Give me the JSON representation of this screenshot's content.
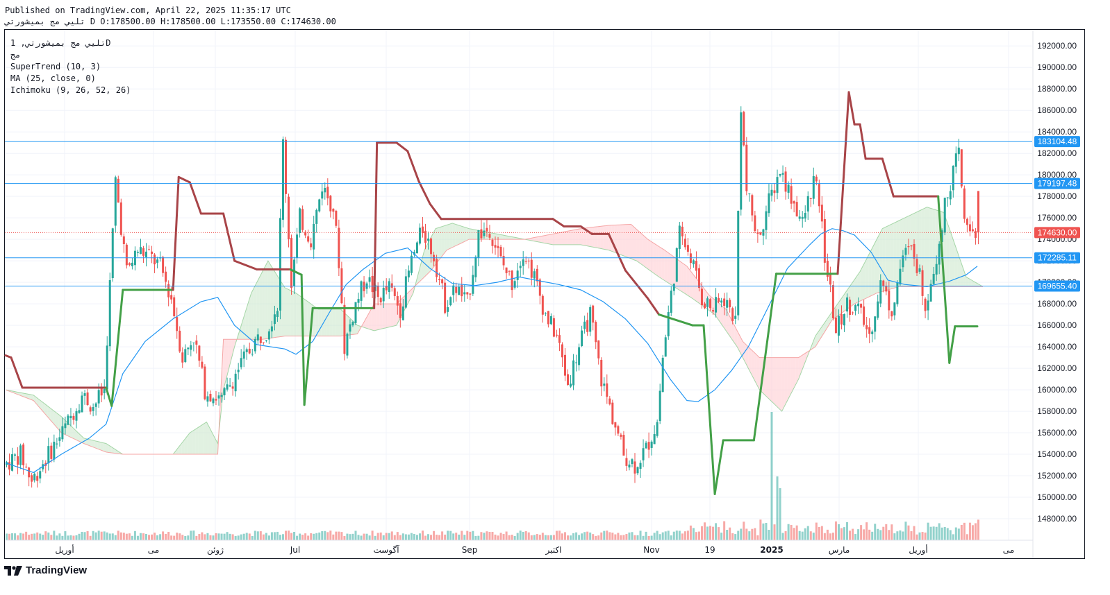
{
  "header": {
    "published": "Published on TradingView.com, April 22, 2025 11:35:17 UTC",
    "symbol_line": "تليي مج بميشورتي D O:178500.00 H:178500.00 L:173550.00 C:174630.00"
  },
  "legend": {
    "symbol": "تليي مج بميشورتي, 1D",
    "exchange": "مج",
    "indicators": [
      "SuperTrend (10, 3)",
      "MA (25, close, 0)",
      "Ichimoku (9, 26, 52, 26)"
    ]
  },
  "brand": {
    "name": "TradingView"
  },
  "colors": {
    "up": "#26a69a",
    "down": "#ef5350",
    "supertrend_up": "#43a047",
    "supertrend_down": "#a84448",
    "ma": "#2196f3",
    "hline": "#2196f3",
    "last_price": "#ef5350",
    "cloud_bull": "#c8e6c9",
    "cloud_bear": "#ffcdd2"
  },
  "chart_data": {
    "type": "candlestick",
    "ylim": [
      146000,
      193500
    ],
    "y_ticks": [
      "192000.00",
      "190000.00",
      "188000.00",
      "186000.00",
      "184000.00",
      "182000.00",
      "180000.00",
      "178000.00",
      "176000.00",
      "174000.00",
      "172000.00",
      "170000.00",
      "168000.00",
      "166000.00",
      "164000.00",
      "162000.00",
      "160000.00",
      "158000.00",
      "156000.00",
      "154000.00",
      "152000.00",
      "150000.00",
      "148000.00"
    ],
    "x_ticks": [
      "أوريل",
      "مى",
      "ژوئن",
      "Jul",
      "آگوست",
      "Sep",
      "اكتبر",
      "Nov",
      "19",
      "2025",
      "مارس",
      "أوريل",
      "مى"
    ],
    "horizontal_lines": [
      {
        "value": 183104.48,
        "label": "183104.48"
      },
      {
        "value": 179197.48,
        "label": "179197.48"
      },
      {
        "value": 172285.11,
        "label": "172285.11"
      },
      {
        "value": 169655.4,
        "label": "169655.40"
      }
    ],
    "last_price": {
      "value": 174630.0,
      "label": "174630.00"
    },
    "ohlc": {
      "open": 178500.0,
      "high": 178500.0,
      "low": 173550.0,
      "close": 174630.0
    },
    "keypoints": [
      [
        0,
        153000
      ],
      [
        6,
        154000
      ],
      [
        10,
        151500
      ],
      [
        16,
        154000
      ],
      [
        22,
        156500
      ],
      [
        28,
        159500
      ],
      [
        32,
        158500
      ],
      [
        36,
        160000
      ],
      [
        40,
        179500
      ],
      [
        44,
        171000
      ],
      [
        48,
        173000
      ],
      [
        52,
        172500
      ],
      [
        56,
        171500
      ],
      [
        60,
        168500
      ],
      [
        64,
        163000
      ],
      [
        68,
        165000
      ],
      [
        72,
        160000
      ],
      [
        78,
        159000
      ],
      [
        84,
        162000
      ],
      [
        90,
        164500
      ],
      [
        94,
        165500
      ],
      [
        98,
        168000
      ],
      [
        100,
        183000
      ],
      [
        103,
        170000
      ],
      [
        106,
        176000
      ],
      [
        110,
        174000
      ],
      [
        114,
        179000
      ],
      [
        118,
        177000
      ],
      [
        120,
        172000
      ],
      [
        122,
        164000
      ],
      [
        126,
        168000
      ],
      [
        130,
        170500
      ],
      [
        134,
        168500
      ],
      [
        138,
        169500
      ],
      [
        142,
        167500
      ],
      [
        146,
        172000
      ],
      [
        150,
        175000
      ],
      [
        154,
        172500
      ],
      [
        158,
        168000
      ],
      [
        162,
        169500
      ],
      [
        166,
        168000
      ],
      [
        170,
        174500
      ],
      [
        174,
        175000
      ],
      [
        178,
        172000
      ],
      [
        182,
        170000
      ],
      [
        186,
        173000
      ],
      [
        190,
        170500
      ],
      [
        194,
        167000
      ],
      [
        198,
        165000
      ],
      [
        202,
        160500
      ],
      [
        206,
        164000
      ],
      [
        210,
        167000
      ],
      [
        214,
        161000
      ],
      [
        218,
        157500
      ],
      [
        222,
        154000
      ],
      [
        226,
        153000
      ],
      [
        230,
        154500
      ],
      [
        234,
        157000
      ],
      [
        236,
        163000
      ],
      [
        238,
        167000
      ],
      [
        242,
        174500
      ],
      [
        246,
        172500
      ],
      [
        250,
        168500
      ],
      [
        254,
        167500
      ],
      [
        258,
        168500
      ],
      [
        262,
        166500
      ],
      [
        264,
        186500
      ],
      [
        266,
        178500
      ],
      [
        270,
        174000
      ],
      [
        274,
        177500
      ],
      [
        278,
        180500
      ],
      [
        282,
        178000
      ],
      [
        286,
        175500
      ],
      [
        290,
        179500
      ],
      [
        292,
        177500
      ],
      [
        294,
        172500
      ],
      [
        298,
        165500
      ],
      [
        302,
        168000
      ],
      [
        306,
        167500
      ],
      [
        310,
        165000
      ],
      [
        314,
        170000
      ],
      [
        318,
        167500
      ],
      [
        322,
        172500
      ],
      [
        326,
        173000
      ],
      [
        330,
        168000
      ],
      [
        334,
        172500
      ],
      [
        338,
        178500
      ],
      [
        342,
        182000
      ],
      [
        344,
        175500
      ],
      [
        348,
        174800
      ]
    ],
    "supertrend": [
      [
        0,
        163200
      ],
      [
        2,
        163000
      ],
      [
        6,
        160200
      ],
      [
        36,
        160200
      ],
      [
        38,
        158500
      ],
      [
        42,
        169300
      ],
      [
        60,
        169300
      ],
      [
        62,
        179800
      ],
      [
        66,
        179300
      ],
      [
        70,
        176400
      ],
      [
        78,
        176400
      ],
      [
        82,
        172000
      ],
      [
        90,
        171200
      ],
      [
        102,
        171200
      ],
      [
        106,
        170700
      ],
      [
        107,
        158600
      ],
      [
        110,
        167600
      ],
      [
        132,
        167600
      ],
      [
        133,
        183000
      ],
      [
        140,
        183000
      ],
      [
        144,
        182200
      ],
      [
        148,
        179400
      ],
      [
        152,
        177300
      ],
      [
        156,
        175900
      ],
      [
        196,
        175900
      ],
      [
        200,
        175200
      ],
      [
        206,
        175200
      ],
      [
        210,
        174500
      ],
      [
        216,
        174500
      ],
      [
        222,
        171100
      ],
      [
        230,
        168500
      ],
      [
        234,
        167000
      ],
      [
        246,
        166000
      ],
      [
        250,
        166000
      ],
      [
        254,
        150300
      ],
      [
        257,
        155300
      ],
      [
        268,
        155300
      ],
      [
        272,
        163000
      ],
      [
        276,
        170800
      ],
      [
        298,
        170800
      ],
      [
        302,
        187700
      ],
      [
        304,
        184700
      ],
      [
        306,
        184700
      ],
      [
        308,
        181500
      ],
      [
        314,
        181500
      ],
      [
        318,
        178000
      ],
      [
        334,
        178000
      ],
      [
        338,
        162500
      ],
      [
        340,
        165900
      ],
      [
        348,
        165900
      ]
    ],
    "ma": [
      [
        0,
        153200
      ],
      [
        10,
        152300
      ],
      [
        20,
        154000
      ],
      [
        30,
        155500
      ],
      [
        36,
        156800
      ],
      [
        42,
        161500
      ],
      [
        50,
        164500
      ],
      [
        60,
        166600
      ],
      [
        70,
        168200
      ],
      [
        76,
        168600
      ],
      [
        82,
        166000
      ],
      [
        90,
        164200
      ],
      [
        100,
        163800
      ],
      [
        104,
        163300
      ],
      [
        110,
        164500
      ],
      [
        116,
        167200
      ],
      [
        122,
        169800
      ],
      [
        128,
        171200
      ],
      [
        136,
        172700
      ],
      [
        144,
        173200
      ],
      [
        152,
        171300
      ],
      [
        160,
        169900
      ],
      [
        168,
        169700
      ],
      [
        176,
        170000
      ],
      [
        184,
        170500
      ],
      [
        192,
        170100
      ],
      [
        198,
        169800
      ],
      [
        206,
        169300
      ],
      [
        214,
        168200
      ],
      [
        222,
        166600
      ],
      [
        230,
        164300
      ],
      [
        238,
        161000
      ],
      [
        244,
        159000
      ],
      [
        248,
        158900
      ],
      [
        254,
        160000
      ],
      [
        260,
        161800
      ],
      [
        266,
        164000
      ],
      [
        272,
        167100
      ],
      [
        280,
        171300
      ],
      [
        288,
        173500
      ],
      [
        292,
        174500
      ],
      [
        296,
        175000
      ],
      [
        300,
        174800
      ],
      [
        304,
        174400
      ],
      [
        310,
        172800
      ],
      [
        316,
        170200
      ],
      [
        322,
        169800
      ],
      [
        330,
        169600
      ],
      [
        338,
        170100
      ],
      [
        344,
        170700
      ],
      [
        348,
        171500
      ]
    ],
    "cloud_a": [
      [
        0,
        160000
      ],
      [
        10,
        159500
      ],
      [
        20,
        157500
      ],
      [
        28,
        155500
      ],
      [
        36,
        155000
      ],
      [
        42,
        154000
      ],
      [
        52,
        154000
      ],
      [
        60,
        154000
      ],
      [
        66,
        156000
      ],
      [
        72,
        157000
      ],
      [
        76,
        155000
      ],
      [
        78,
        160000
      ],
      [
        82,
        164000
      ],
      [
        88,
        169000
      ],
      [
        94,
        172000
      ],
      [
        100,
        169500
      ],
      [
        104,
        169000
      ],
      [
        112,
        167500
      ],
      [
        120,
        167500
      ],
      [
        126,
        166000
      ],
      [
        132,
        165500
      ],
      [
        140,
        166000
      ],
      [
        146,
        169000
      ],
      [
        150,
        173000
      ],
      [
        154,
        175000
      ],
      [
        160,
        175500
      ],
      [
        166,
        175000
      ],
      [
        176,
        174500
      ],
      [
        186,
        174000
      ],
      [
        196,
        173500
      ],
      [
        206,
        173500
      ],
      [
        216,
        173000
      ],
      [
        226,
        172000
      ],
      [
        234,
        170500
      ],
      [
        240,
        169500
      ],
      [
        246,
        168500
      ],
      [
        254,
        167000
      ],
      [
        262,
        164000
      ],
      [
        270,
        160000
      ],
      [
        278,
        158000
      ],
      [
        284,
        161000
      ],
      [
        290,
        165000
      ],
      [
        298,
        168000
      ],
      [
        306,
        171000
      ],
      [
        314,
        175000
      ],
      [
        322,
        176000
      ],
      [
        330,
        177000
      ],
      [
        336,
        176500
      ],
      [
        344,
        170500
      ],
      [
        350,
        169600
      ]
    ],
    "cloud_b": [
      [
        0,
        160000
      ],
      [
        10,
        159000
      ],
      [
        20,
        156000
      ],
      [
        28,
        155000
      ],
      [
        36,
        154200
      ],
      [
        42,
        154000
      ],
      [
        52,
        154000
      ],
      [
        60,
        154000
      ],
      [
        66,
        154000
      ],
      [
        72,
        154000
      ],
      [
        76,
        154000
      ],
      [
        78,
        164700
      ],
      [
        84,
        164700
      ],
      [
        92,
        164700
      ],
      [
        100,
        165000
      ],
      [
        106,
        165000
      ],
      [
        112,
        165000
      ],
      [
        120,
        165000
      ],
      [
        126,
        165200
      ],
      [
        132,
        168000
      ],
      [
        140,
        168000
      ],
      [
        146,
        169500
      ],
      [
        152,
        171000
      ],
      [
        158,
        173000
      ],
      [
        166,
        174000
      ],
      [
        176,
        174000
      ],
      [
        186,
        174000
      ],
      [
        196,
        174500
      ],
      [
        206,
        175000
      ],
      [
        216,
        175300
      ],
      [
        224,
        175400
      ],
      [
        230,
        174000
      ],
      [
        236,
        173000
      ],
      [
        244,
        171500
      ],
      [
        252,
        168800
      ],
      [
        258,
        167500
      ],
      [
        264,
        164500
      ],
      [
        270,
        163000
      ],
      [
        276,
        163000
      ],
      [
        284,
        163000
      ],
      [
        290,
        164000
      ],
      [
        296,
        166500
      ],
      [
        304,
        168000
      ],
      [
        312,
        169000
      ],
      [
        320,
        169600
      ],
      [
        330,
        169600
      ],
      [
        340,
        169600
      ],
      [
        350,
        169600
      ]
    ]
  }
}
